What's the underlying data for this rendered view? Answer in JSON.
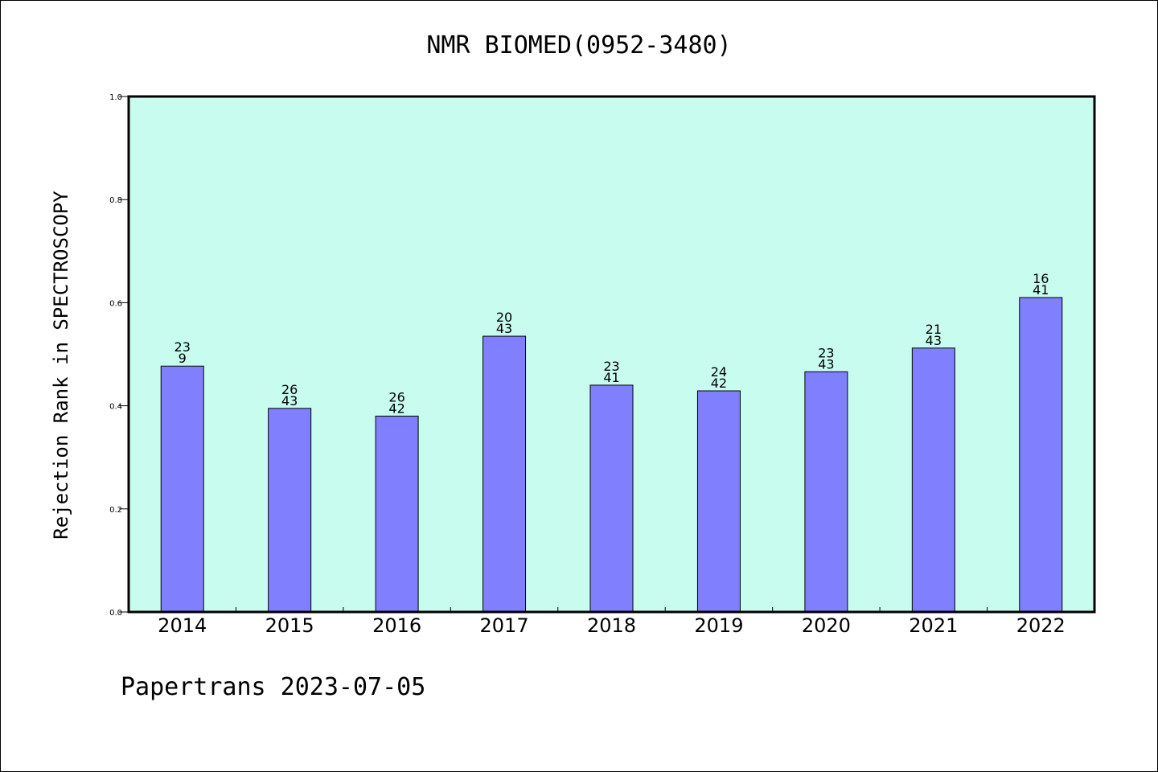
{
  "chart_data": {
    "type": "bar",
    "title": "NMR BIOMED(0952-3480)",
    "ylabel": "Rejection Rank in SPECTROSCOPY",
    "xlabel": "",
    "ylim": [
      0.0,
      1.0
    ],
    "yticks": [
      "0.0",
      "0.2",
      "0.4",
      "0.6",
      "0.8",
      "1.0"
    ],
    "grid": false,
    "colors": {
      "bar": "#8080ff",
      "plot_bg": "#c8fcee",
      "bar_edge": "#000000"
    },
    "categories": [
      "2014",
      "2015",
      "2016",
      "2017",
      "2018",
      "2019",
      "2020",
      "2021",
      "2022"
    ],
    "values": [
      0.477,
      0.395,
      0.38,
      0.535,
      0.44,
      0.429,
      0.466,
      0.512,
      0.61
    ],
    "labels_top": [
      "23",
      "26",
      "26",
      "20",
      "23",
      "24",
      "23",
      "21",
      "16"
    ],
    "labels_bottom": [
      "9",
      "43",
      "42",
      "43",
      "41",
      "42",
      "43",
      "43",
      "41"
    ]
  },
  "footer": "Papertrans 2023-07-05"
}
